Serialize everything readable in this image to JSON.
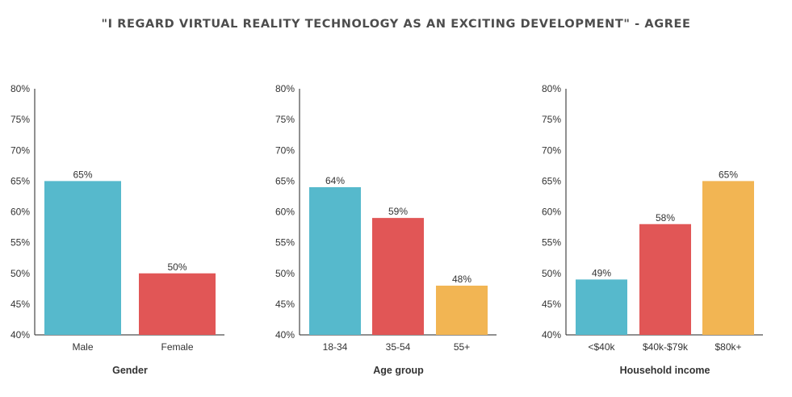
{
  "title": "\"I REGARD VIRTUAL REALITY TECHNOLOGY AS AN EXCITING DEVELOPMENT\" - AGREE",
  "chart_data": [
    {
      "type": "bar",
      "title": "Gender",
      "categories": [
        "Male",
        "Female"
      ],
      "values": [
        65,
        50
      ],
      "value_labels": [
        "65%",
        "50%"
      ],
      "colors": [
        "#56b9cc",
        "#e15656"
      ],
      "ylim": [
        40,
        80
      ],
      "yticks": [
        "40%",
        "45%",
        "50%",
        "55%",
        "60%",
        "65%",
        "70%",
        "75%",
        "80%"
      ],
      "grid": false
    },
    {
      "type": "bar",
      "title": "Age group",
      "categories": [
        "18-34",
        "35-54",
        "55+"
      ],
      "values": [
        64,
        59,
        48
      ],
      "value_labels": [
        "64%",
        "59%",
        "48%"
      ],
      "colors": [
        "#56b9cc",
        "#e15656",
        "#f2b553"
      ],
      "ylim": [
        40,
        80
      ],
      "yticks": [
        "40%",
        "45%",
        "50%",
        "55%",
        "60%",
        "65%",
        "70%",
        "75%",
        "80%"
      ],
      "grid": false
    },
    {
      "type": "bar",
      "title": "Household income",
      "categories": [
        "<$40k",
        "$40k-$79k",
        "$80k+"
      ],
      "values": [
        49,
        58,
        65
      ],
      "value_labels": [
        "49%",
        "58%",
        "65%"
      ],
      "colors": [
        "#56b9cc",
        "#e15656",
        "#f2b553"
      ],
      "ylim": [
        40,
        80
      ],
      "yticks": [
        "40%",
        "45%",
        "50%",
        "55%",
        "60%",
        "65%",
        "70%",
        "75%",
        "80%"
      ],
      "grid": false
    }
  ]
}
